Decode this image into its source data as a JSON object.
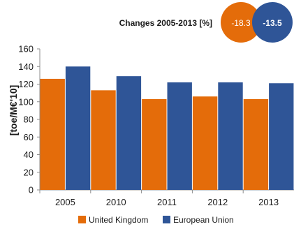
{
  "changes_header": {
    "label": "Changes  2005-2013 [%]",
    "badges": [
      {
        "value": "-18.3",
        "color": "#E46C0A"
      },
      {
        "value": "-13.5",
        "color": "#2F5597"
      }
    ]
  },
  "chart_data": {
    "type": "bar",
    "title": "",
    "xlabel": "",
    "ylabel": "[toe/M€'10]",
    "categories": [
      "2005",
      "2010",
      "2011",
      "2012",
      "2013"
    ],
    "series": [
      {
        "name": "United Kingdom",
        "color": "#E46C0A",
        "values": [
          126,
          113,
          103,
          106,
          103
        ]
      },
      {
        "name": "European Union",
        "color": "#2F5597",
        "values": [
          140,
          129,
          122,
          122,
          121
        ]
      }
    ],
    "ylim": [
      0,
      160
    ],
    "yticks": [
      0,
      20,
      40,
      60,
      80,
      100,
      120,
      140,
      160
    ],
    "grid": false,
    "legend": "bottom"
  }
}
